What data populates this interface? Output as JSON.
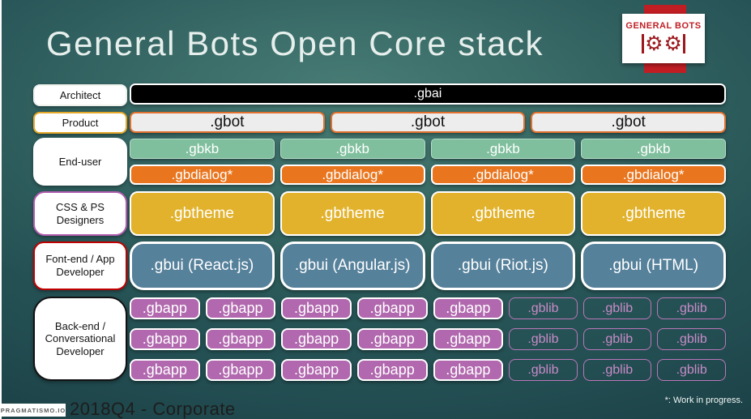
{
  "slide": {
    "title": "General Bots Open Core stack",
    "footer_brand": "PRAGMATISMO.IO",
    "footer_label": "2018Q4 - Corporate",
    "footnote": "*: Work in progress."
  },
  "logo": {
    "title": "GENERAL BOTS",
    "gear_glyph": "⚙"
  },
  "labels": {
    "architect": "Architect",
    "product": "Product",
    "end_user": "End-user",
    "designers": "CSS & PS Designers",
    "frontend": "Font-end / App Developer",
    "backend": "Back-end / Conversational Developer"
  },
  "stack": {
    "gbai": ".gbai",
    "gbot": [
      ".gbot",
      ".gbot",
      ".gbot"
    ],
    "gbkb": [
      ".gbkb",
      ".gbkb",
      ".gbkb",
      ".gbkb"
    ],
    "gbdialog": [
      ".gbdialog*",
      ".gbdialog*",
      ".gbdialog*",
      ".gbdialog*"
    ],
    "gbtheme": [
      ".gbtheme",
      ".gbtheme",
      ".gbtheme",
      ".gbtheme"
    ],
    "gbui": [
      ".gbui (React.js)",
      ".gbui (Angular.js)",
      ".gbui (Riot.js)",
      ".gbui (HTML)"
    ],
    "backend_rows": [
      {
        "gbapp": [
          ".gbapp",
          ".gbapp",
          ".gbapp",
          ".gbapp",
          ".gbapp"
        ],
        "gblib": [
          ".gblib",
          ".gblib",
          ".gblib"
        ]
      },
      {
        "gbapp": [
          ".gbapp",
          ".gbapp",
          ".gbapp",
          ".gbapp",
          ".gbapp"
        ],
        "gblib": [
          ".gblib",
          ".gblib",
          ".gblib"
        ]
      },
      {
        "gbapp": [
          ".gbapp",
          ".gbapp",
          ".gbapp",
          ".gbapp",
          ".gbapp"
        ],
        "gblib": [
          ".gblib",
          ".gblib",
          ".gblib"
        ]
      }
    ]
  },
  "colors": {
    "logo_red": "#c11e24",
    "gbai_bg": "#000000",
    "gbot_border": "#e0712f",
    "gbkb_bg": "#7fbf9d",
    "gbdialog_bg": "#e9761f",
    "gbtheme_bg": "#e2b22c",
    "gbui_bg": "#56819b",
    "gbapp_bg": "#b168ae",
    "gblib_accent": "#c98bc7"
  }
}
